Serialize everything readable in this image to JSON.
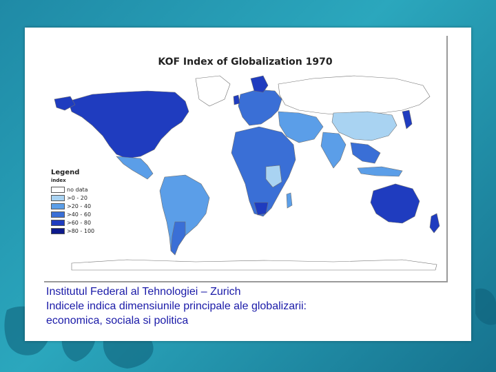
{
  "slide": {
    "map_title": "KOF Index of Globalization 1970",
    "legend": {
      "title": "Legend",
      "subtitle": "index",
      "items": [
        {
          "label": "no data",
          "color": "#ffffff"
        },
        {
          "label": ">0 - 20",
          "color": "#a9d3f2"
        },
        {
          "label": ">20 - 40",
          "color": "#5b9ee8"
        },
        {
          "label": ">40 - 60",
          "color": "#3a6fd6"
        },
        {
          "label": ">60 - 80",
          "color": "#1f3cbf"
        },
        {
          "label": ">80 - 100",
          "color": "#0d1a8c"
        }
      ]
    },
    "caption_lines": [
      "Institutul Federal al Tehnologiei – Zurich",
      "Indicele indica dimensiunile principale ale globalizarii:",
      "economica, sociala si politica"
    ]
  },
  "colors": {
    "background": "#1f8aa6",
    "caption_text": "#1a1aa8",
    "land_outline": "#6e6e6e"
  }
}
